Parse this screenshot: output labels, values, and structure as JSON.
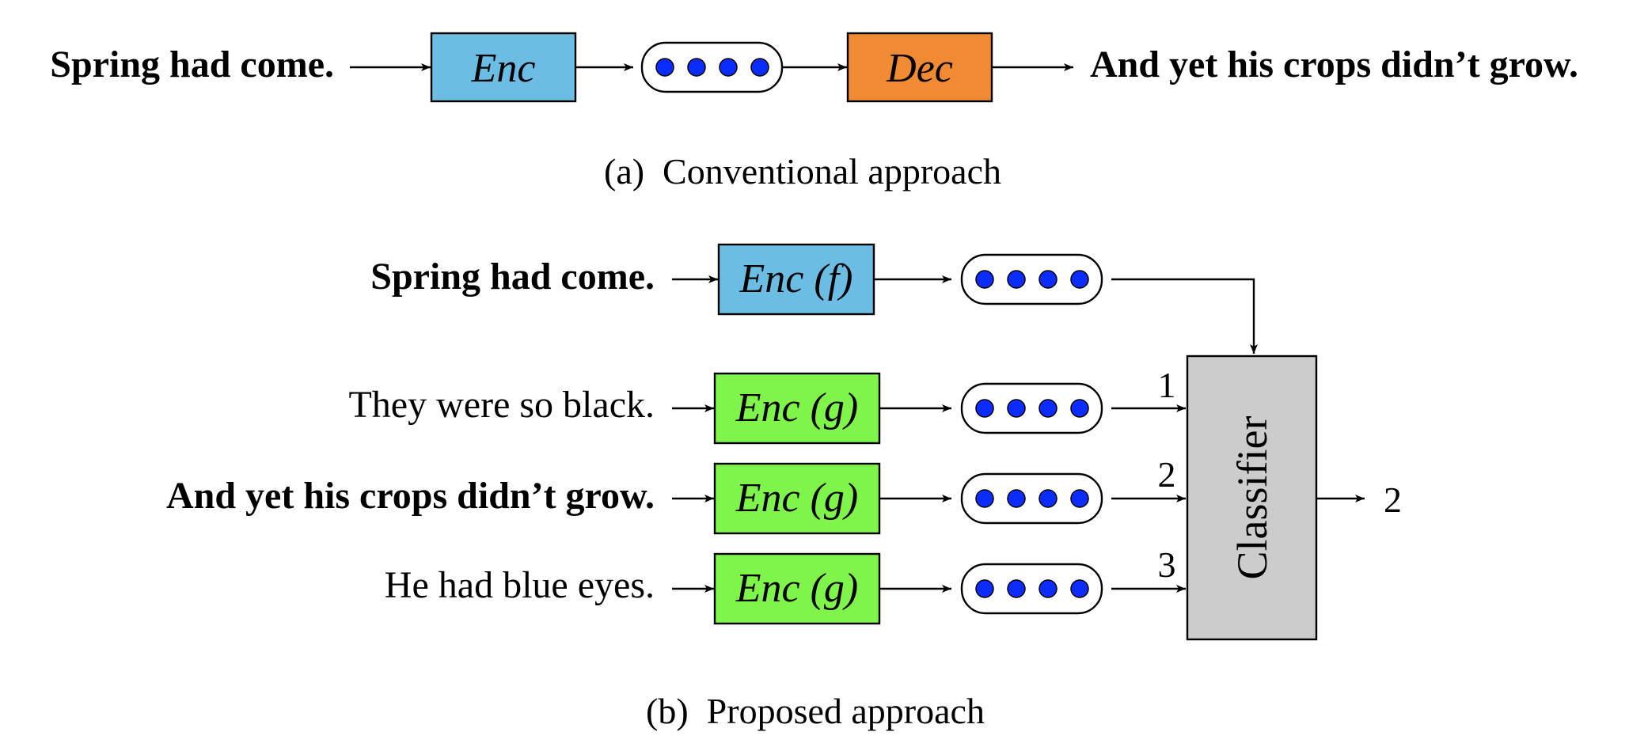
{
  "colors": {
    "enc_blue": "#6bbde3",
    "dec_orange": "#f08a33",
    "enc_green": "#7ff44a",
    "classifier_gray": "#cccccc",
    "dot_blue": "#0a2cff"
  },
  "panel_a": {
    "input": "Spring had come.",
    "encoder": "Enc",
    "decoder": "Dec",
    "output": "And yet his crops didn’t grow.",
    "caption": "(a)  Conventional approach"
  },
  "panel_b": {
    "context": "Spring had come.",
    "context_encoder": "Enc (f)",
    "candidates": [
      {
        "text": "They were so black.",
        "encoder": "Enc (g)",
        "index": "1",
        "bold": false
      },
      {
        "text": "And yet his crops didn’t grow.",
        "encoder": "Enc (g)",
        "index": "2",
        "bold": true
      },
      {
        "text": "He had blue eyes.",
        "encoder": "Enc (g)",
        "index": "3",
        "bold": false
      }
    ],
    "classifier": "Classifier",
    "output": "2",
    "caption": "(b)  Proposed approach"
  }
}
